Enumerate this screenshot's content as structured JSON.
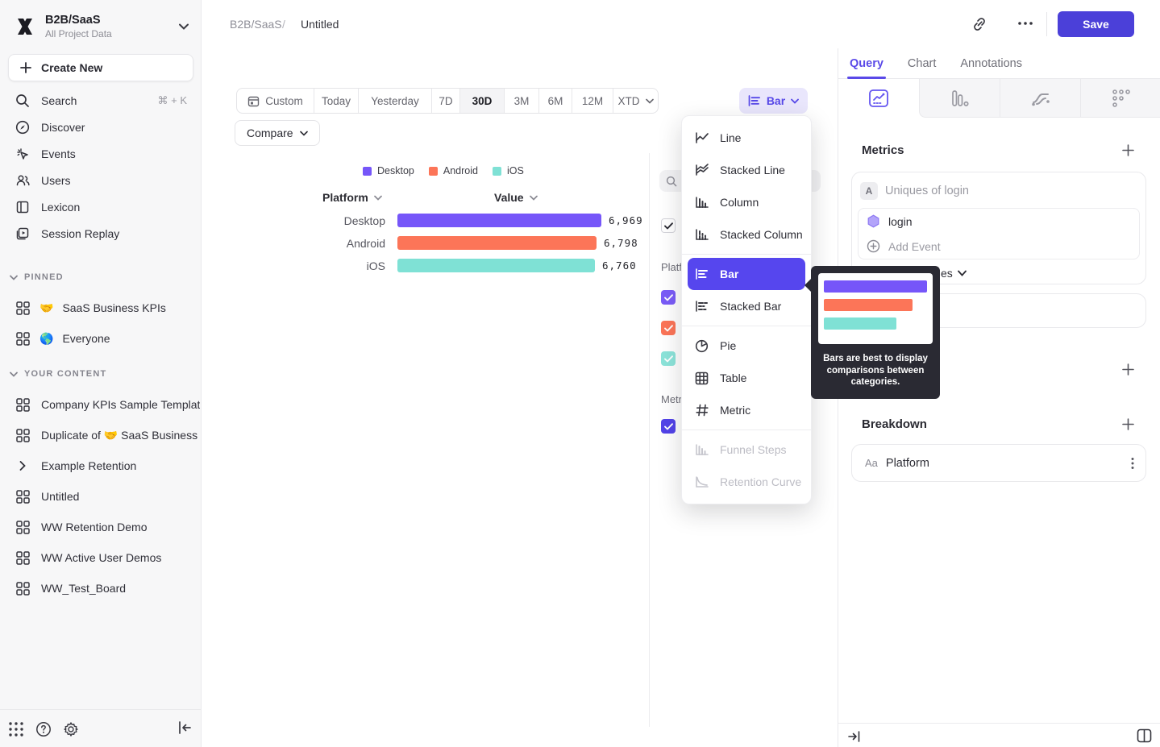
{
  "app": {
    "workspace_name": "B2B/SaaS",
    "workspace_subtitle": "All Project Data",
    "create_new_label": "Create New"
  },
  "sidebar": {
    "nav": [
      {
        "label": "Search",
        "shortcut": "⌘ + K"
      },
      {
        "label": "Discover"
      },
      {
        "label": "Events"
      },
      {
        "label": "Users"
      },
      {
        "label": "Lexicon"
      },
      {
        "label": "Session Replay"
      }
    ],
    "pinned_header": "PINNED",
    "pinned": [
      {
        "emoji": "🤝",
        "label": "SaaS Business KPIs"
      },
      {
        "emoji": "🌎",
        "label": "Everyone"
      }
    ],
    "your_content_header": "YOUR CONTENT",
    "your_content": [
      {
        "label": "Company KPIs Sample Templat"
      },
      {
        "label": "Duplicate of 🤝 SaaS Business"
      },
      {
        "label": "Example Retention"
      },
      {
        "label": "Untitled"
      },
      {
        "label": "WW Retention Demo"
      },
      {
        "label": "WW Active User Demos"
      },
      {
        "label": "WW_Test_Board"
      }
    ]
  },
  "topbar": {
    "breadcrumb_root": "B2B/SaaS",
    "breadcrumb_sep": "/",
    "breadcrumb_current": "Untitled",
    "save_label": "Save"
  },
  "toolbar": {
    "date_ranges": [
      "Custom",
      "Today",
      "Yesterday",
      "7D",
      "30D",
      "3M",
      "6M",
      "12M",
      "XTD"
    ],
    "selected_range": "30D",
    "compare_label": "Compare",
    "chart_type_label": "Bar"
  },
  "chart_data": {
    "type": "bar",
    "orientation": "horizontal",
    "columns": {
      "category": "Platform",
      "value": "Value"
    },
    "legend": [
      "Desktop",
      "Android",
      "iOS"
    ],
    "categories": [
      "Desktop",
      "Android",
      "iOS"
    ],
    "values": [
      6969,
      6798,
      6760
    ],
    "value_labels": [
      "6,969",
      "6,798",
      "6,760"
    ],
    "colors": [
      "#7656f9",
      "#fc7558",
      "#7fe1d5"
    ],
    "xlim": [
      0,
      6969
    ],
    "grid": false,
    "legend_position": "top"
  },
  "series_panel": {
    "group_platform_fragment": "Platf",
    "group_metrics_fragment": "Metr",
    "checkbox_colors": [
      "#7a5cf8",
      "#fc7558",
      "#8ce4da",
      "#5243e9"
    ]
  },
  "chart_menu": {
    "items": [
      {
        "label": "Line"
      },
      {
        "label": "Stacked Line"
      },
      {
        "label": "Column"
      },
      {
        "label": "Stacked Column"
      },
      {
        "label": "Bar",
        "state": "selected"
      },
      {
        "label": "Stacked Bar"
      },
      {
        "label": "Pie"
      },
      {
        "label": "Table"
      },
      {
        "label": "Metric"
      },
      {
        "label": "Funnel Steps",
        "state": "disabled"
      },
      {
        "label": "Retention Curve",
        "state": "disabled"
      }
    ]
  },
  "tooltip": {
    "text": "Bars are best to display comparisons between categories.",
    "bar_colors": [
      "#7656f9",
      "#fc7558",
      "#7fe1d5"
    ],
    "bar_widths_pct": [
      100,
      86,
      70
    ]
  },
  "query_panel": {
    "tabs": [
      "Query",
      "Chart",
      "Annotations"
    ],
    "active_tab": "Query",
    "metrics_header": "Metrics",
    "metric_row_badge": "A",
    "metric_row_title": "Uniques of login",
    "event_name": "login",
    "add_event_label": "Add Event",
    "measurement_visible_fragment": "es",
    "breakdown_header": "Breakdown",
    "breakdown_property_type": "Aa",
    "breakdown_property": "Platform"
  },
  "colors": {
    "accent_save": "#4b40d9",
    "menu_selected": "#5646ee",
    "active_tab_purple": "#5a49e8"
  }
}
